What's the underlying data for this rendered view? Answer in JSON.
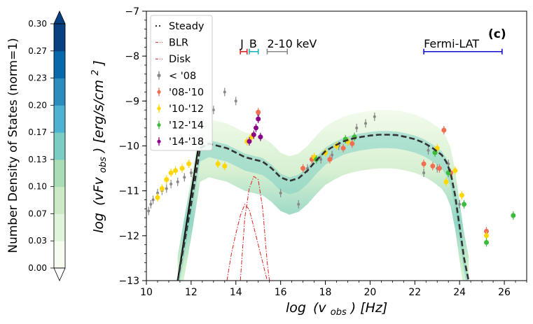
{
  "chart_data": {
    "type": "scatter",
    "panel_label": "(c)",
    "xlabel_main": "log",
    "xlabel_var": "(v",
    "xlabel_sub": "obs",
    "xlabel_unit": ")  [Hz]",
    "ylabel_main": "log",
    "ylabel_var": "(vFv",
    "ylabel_sub": "obs",
    "ylabel_unit": ")  [erg/s/cm",
    "ylabel_sup": "2",
    "ylabel_close": "]",
    "xlim": [
      10,
      27
    ],
    "ylim": [
      -13,
      -7
    ],
    "xticks": [
      10,
      12,
      14,
      16,
      18,
      20,
      22,
      24,
      26
    ],
    "xtick_labels": [
      "10",
      "12",
      "14",
      "16",
      "18",
      "20",
      "22",
      "24",
      "26"
    ],
    "yticks": [
      -13,
      -12,
      -11,
      -10,
      -9,
      -8,
      -7
    ],
    "ytick_labels": [
      "−13",
      "−12",
      "−11",
      "−10",
      "−9",
      "−8",
      "−7"
    ],
    "colorbar": {
      "label": "Number Density of States (norm=1)",
      "ticks": [
        "0.00",
        "0.03",
        "0.07",
        "0.10",
        "0.13",
        "0.17",
        "0.20",
        "0.23",
        "0.27",
        "0.30"
      ],
      "colors": [
        "#f7fcf0",
        "#e0f3db",
        "#ccebc5",
        "#a8ddb5",
        "#7bccc4",
        "#4eb3d3",
        "#2b8cbe",
        "#0868ac",
        "#084081"
      ],
      "extend_low": "#ffffff",
      "extend_high": "#084081"
    },
    "legend": [
      {
        "label": "Steady",
        "color": "#333333",
        "style": "dotted-line"
      },
      {
        "label": "BLR",
        "color": "#dd2222",
        "style": "dashdot-line"
      },
      {
        "label": "Disk",
        "color": "#dd2222",
        "style": "dashdot-line"
      },
      {
        "label": "< '08",
        "color": "#888888",
        "style": "errorbar"
      },
      {
        "label": "'08-'10",
        "color": "#f26d52",
        "style": "errorbar"
      },
      {
        "label": "'10-'12",
        "color": "#ffd700",
        "style": "errorbar"
      },
      {
        "label": "'12-'14",
        "color": "#3dbb3d",
        "style": "errorbar"
      },
      {
        "label": "'14-'18",
        "color": "#8b008b",
        "style": "errorbar"
      }
    ],
    "bands": [
      {
        "label": "J",
        "range": [
          14.2,
          14.5
        ],
        "y": -7.9,
        "color": "#dd2222"
      },
      {
        "label": "B",
        "range": [
          14.6,
          15.0
        ],
        "y": -7.9,
        "color": "#17b3b3"
      },
      {
        "label": "2-10 keV",
        "range": [
          15.4,
          16.3
        ],
        "y": -7.9,
        "color": "#888888"
      },
      {
        "label": "Fermi-LAT",
        "range": [
          22.4,
          25.9
        ],
        "y": -7.9,
        "color": "#1010cc"
      }
    ],
    "steady_model": {
      "x": [
        11.4,
        12.0,
        12.4,
        12.8,
        13.2,
        13.6,
        14.0,
        14.4,
        14.8,
        15.2,
        15.6,
        16.0,
        16.4,
        16.8,
        17.2,
        17.6,
        18.0,
        18.4,
        18.8,
        19.2,
        19.6,
        20.0,
        20.4,
        20.8,
        21.2,
        21.6,
        22.0,
        22.4,
        22.8,
        23.2,
        23.4,
        23.6,
        23.8,
        24.0,
        24.2,
        24.4
      ],
      "y": [
        -13.0,
        -11.3,
        -10.05,
        -9.95,
        -10.0,
        -10.05,
        -10.15,
        -10.25,
        -10.3,
        -10.35,
        -10.5,
        -10.7,
        -10.78,
        -10.72,
        -10.55,
        -10.32,
        -10.12,
        -10.0,
        -9.9,
        -9.84,
        -9.8,
        -9.77,
        -9.75,
        -9.75,
        -9.76,
        -9.8,
        -9.85,
        -9.93,
        -10.05,
        -10.2,
        -10.35,
        -10.6,
        -11.1,
        -11.8,
        -12.5,
        -13.0
      ]
    },
    "blr_model": {
      "x": [
        13.6,
        13.8,
        14.0,
        14.2,
        14.4,
        14.6,
        14.8,
        15.0,
        15.2,
        15.4
      ],
      "y": [
        -13.0,
        -12.4,
        -11.95,
        -11.55,
        -11.3,
        -11.42,
        -11.8,
        -12.2,
        -12.6,
        -13.0
      ]
    },
    "disk_model": {
      "x": [
        14.2,
        14.4,
        14.6,
        14.8,
        15.0,
        15.2,
        15.4,
        15.5
      ],
      "y": [
        -13.0,
        -11.6,
        -10.95,
        -10.68,
        -10.75,
        -11.4,
        -12.6,
        -13.0
      ]
    },
    "series": [
      {
        "name": "< '08",
        "x": [
          10.1,
          10.2,
          10.3,
          10.5,
          10.7,
          10.9,
          11.1,
          11.4,
          11.7,
          12.0,
          12.5,
          13.0,
          13.5,
          14.0,
          15.0,
          16.0,
          16.8,
          17.2,
          17.8,
          18.3,
          18.6,
          19.0,
          19.4,
          19.8,
          20.2,
          22.4,
          22.6,
          23.0,
          23.5,
          24.0
        ],
        "y": [
          -11.45,
          -11.3,
          -11.2,
          -11.05,
          -11.0,
          -10.95,
          -10.85,
          -10.8,
          -10.7,
          -10.6,
          -9.9,
          -9.2,
          -8.8,
          -9.0,
          -9.3,
          -11.05,
          -11.3,
          -10.5,
          -10.3,
          -10.2,
          -10.0,
          -9.9,
          -9.6,
          -9.5,
          -9.35,
          -10.6,
          -10.1,
          -10.5,
          -10.4,
          -11.3
        ]
      },
      {
        "name": "'08-'10",
        "x": [
          15.0,
          17.0,
          17.4,
          18.2,
          18.8,
          19.2,
          22.4,
          22.8,
          23.1,
          23.3,
          23.6,
          25.2
        ],
        "y": [
          -9.25,
          -10.5,
          -10.3,
          -10.3,
          -10.05,
          -9.95,
          -10.4,
          -10.45,
          -10.5,
          -9.65,
          -10.6,
          -11.9
        ]
      },
      {
        "name": "'10-'12",
        "x": [
          10.5,
          10.7,
          10.9,
          11.1,
          11.3,
          11.6,
          11.9,
          13.2,
          13.5,
          14.5,
          14.7,
          17.5,
          18.0,
          18.5,
          19.0,
          23.0,
          23.4,
          23.8,
          24.1,
          25.2
        ],
        "y": [
          -11.15,
          -10.95,
          -10.75,
          -10.6,
          -10.55,
          -10.5,
          -10.4,
          -10.4,
          -10.45,
          -9.9,
          -9.8,
          -10.25,
          -10.15,
          -10.0,
          -9.9,
          -10.05,
          -10.8,
          -10.55,
          -11.1,
          -12.0
        ]
      },
      {
        "name": "'12-'14",
        "x": [
          17.6,
          18.9,
          19.3,
          22.9,
          23.5,
          24.2,
          25.2,
          26.4
        ],
        "y": [
          -10.3,
          -9.85,
          -9.8,
          -10.15,
          -10.6,
          -11.3,
          -12.15,
          -11.55
        ]
      },
      {
        "name": "'14-'18",
        "x": [
          14.6,
          14.8,
          14.9,
          15.0,
          15.1
        ],
        "y": [
          -9.9,
          -9.75,
          -9.6,
          -9.4,
          -9.8
        ]
      }
    ]
  }
}
